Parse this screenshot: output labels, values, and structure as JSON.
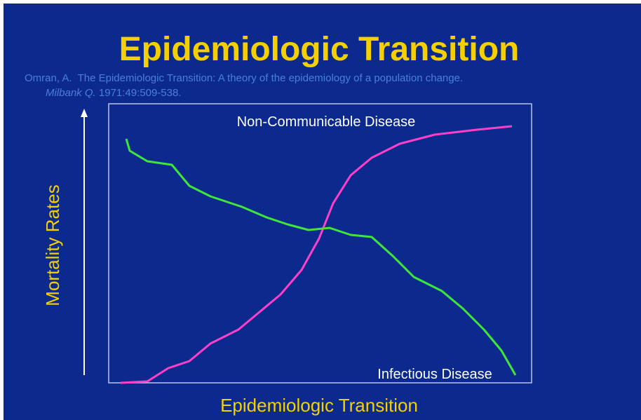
{
  "title": "Epidemiologic Transition",
  "citation": {
    "line1": "Omran, A.  The Epidemiologic Transition: A theory of the epidemiology of a population change.",
    "journal": "Milbank Q.",
    "issue": " 1971:49:509-538."
  },
  "y_axis_label": "Mortality Rates",
  "x_axis_label": "Epidemiologic Transition",
  "labels": {
    "ncd": "Non-Communicable Disease",
    "infectious": "Infectious Disease"
  }
}
